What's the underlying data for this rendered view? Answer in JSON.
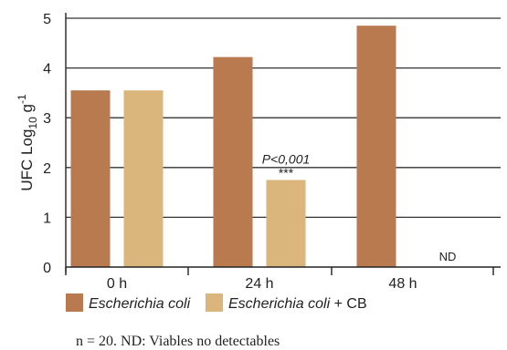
{
  "chart_data": {
    "type": "bar",
    "categories": [
      "0 h",
      "24 h",
      "48 h"
    ],
    "series": [
      {
        "name": "Escherichia coli",
        "values": [
          3.55,
          4.22,
          4.85
        ],
        "color": "#b87a4e"
      },
      {
        "name": "Escherichia coli",
        "name_suffix": " + CB",
        "values": [
          3.55,
          1.75,
          null
        ],
        "color": "#dbb67c"
      }
    ],
    "ylabel": {
      "main": "UFC Log",
      "sub": "10",
      "tail": " g",
      "sup": "-1"
    },
    "ylim": [
      0,
      5
    ],
    "yticks": [
      0,
      1,
      2,
      3,
      4,
      5
    ],
    "grid": true,
    "annotations": [
      {
        "category": "24 h",
        "series_index": 1,
        "text": "P<0,001",
        "stars": "***"
      }
    ],
    "missing_labels": [
      {
        "category": "48 h",
        "series_index": 1,
        "text": "ND"
      }
    ],
    "legend_position": "bottom-left"
  },
  "footnote": "n = 20.  ND: Viables no detectables"
}
